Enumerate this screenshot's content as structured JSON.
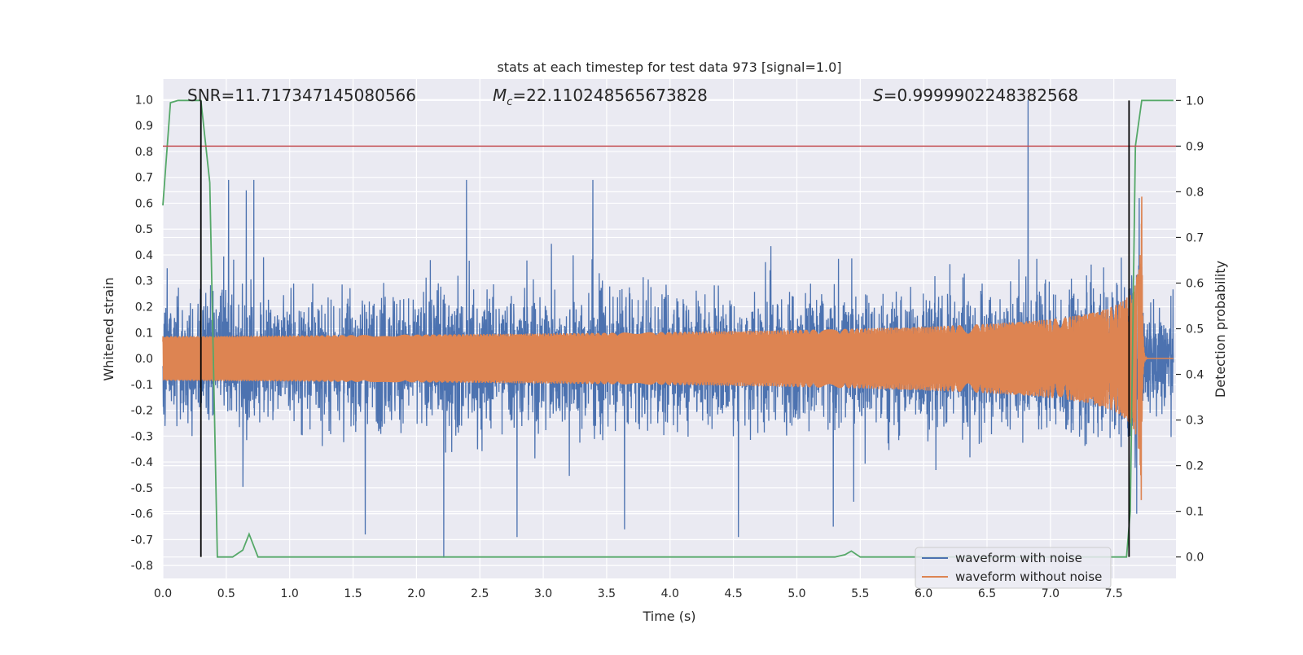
{
  "chart_data": {
    "type": "line",
    "title": "stats at each timestep for test data 973 [signal=1.0]",
    "xlabel": "Time (s)",
    "ylabel_left": "Whitened strain",
    "ylabel_right": "Detection probability",
    "xlim": [
      0.0,
      7.99
    ],
    "ylim_left": [
      -0.85,
      1.08
    ],
    "ylim_right": [
      -0.047,
      1.047
    ],
    "x_ticks": [
      "0.0",
      "0.5",
      "1.0",
      "1.5",
      "2.0",
      "2.5",
      "3.0",
      "3.5",
      "4.0",
      "4.5",
      "5.0",
      "5.5",
      "6.0",
      "6.5",
      "7.0",
      "7.5"
    ],
    "y_left_ticks": [
      "1.0",
      "0.9",
      "0.8",
      "0.7",
      "0.6",
      "0.5",
      "0.4",
      "0.3",
      "0.2",
      "0.1",
      "0.0",
      "-0.1",
      "-0.2",
      "-0.3",
      "-0.4",
      "-0.5",
      "-0.6",
      "-0.7",
      "-0.8"
    ],
    "y_right_ticks": [
      "1.0",
      "0.9",
      "0.8",
      "0.7",
      "0.6",
      "0.5",
      "0.4",
      "0.3",
      "0.2",
      "0.1",
      "0.0"
    ],
    "annotations": {
      "snr": "SNR=11.717347145080566",
      "mc_symbol": "M",
      "mc_sub": "c",
      "mc_value": "=22.110248565673828",
      "s_symbol": "S",
      "s_value": "=0.9999902248382568"
    },
    "threshold_right": 0.9,
    "vertical_markers_x": [
      0.3,
      7.62
    ],
    "series": [
      {
        "name": "waveform with noise",
        "axis": "left",
        "color": "#4c72b0",
        "style": "dense noisy strain, typical envelope ±0.3, peaks to ~0.7, spike to 1.0 at 6.84 s",
        "typical_amplitude": 0.3,
        "spikes": [
          {
            "x": 0.52,
            "y": 0.69
          },
          {
            "x": 0.66,
            "y": 0.65
          },
          {
            "x": 0.72,
            "y": 0.69
          },
          {
            "x": 2.4,
            "y": 0.69
          },
          {
            "x": 3.4,
            "y": 0.69
          },
          {
            "x": 6.84,
            "y": 1.0
          },
          {
            "x": 2.22,
            "y": -0.77
          },
          {
            "x": 1.6,
            "y": -0.68
          },
          {
            "x": 2.8,
            "y": -0.69
          },
          {
            "x": 3.65,
            "y": -0.66
          },
          {
            "x": 4.55,
            "y": -0.69
          },
          {
            "x": 5.3,
            "y": -0.65
          },
          {
            "x": 7.7,
            "y": -0.6
          },
          {
            "x": 7.72,
            "y": 0.62
          }
        ]
      },
      {
        "name": "waveform without noise",
        "axis": "left",
        "color": "#dd8452",
        "style": "chirp: amplitude ~0.005 rising to ~0.65 at merger (7.72 s), then ringdown to 0",
        "merger_time": 7.72,
        "peak_amplitude": 0.65
      },
      {
        "name": "detection probability",
        "axis": "right",
        "color": "#55a868",
        "x": [
          0.0,
          0.06,
          0.12,
          0.3,
          0.37,
          0.43,
          0.55,
          0.63,
          0.68,
          0.75,
          5.3,
          5.38,
          5.43,
          5.5,
          7.6,
          7.63,
          7.67,
          7.72,
          7.76,
          7.97
        ],
        "y": [
          0.77,
          0.995,
          1.0,
          1.0,
          0.82,
          0.0,
          0.0,
          0.015,
          0.05,
          0.0,
          0.0,
          0.005,
          0.013,
          0.0,
          0.0,
          0.1,
          0.9,
          1.0,
          1.0,
          1.0
        ]
      }
    ],
    "legend": {
      "position": "lower right",
      "entries": [
        {
          "label": "waveform with noise",
          "color": "#4c72b0"
        },
        {
          "label": "waveform without noise",
          "color": "#dd8452"
        }
      ]
    }
  }
}
